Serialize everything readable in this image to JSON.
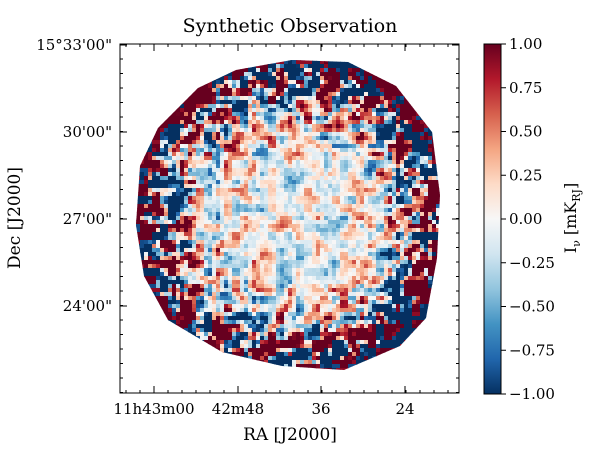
{
  "chart_data": {
    "type": "heatmap",
    "title": "Synthetic Observation",
    "xlabel": "RA [J2000]",
    "ylabel": "Dec [J2000]",
    "x_ticks": [
      "11h43m00",
      "42m48",
      "36",
      "24"
    ],
    "y_ticks": [
      "15°33'00\"",
      "30'00\"",
      "27'00\"",
      "24'00\""
    ],
    "colorbar": {
      "label_main": "I",
      "label_sub": "ν",
      "label_unit": " [mK",
      "label_unit_sub": "RJ",
      "label_close": "]",
      "vmin": -1.0,
      "vmax": 1.0,
      "ticks": [
        "1.00",
        "0.75",
        "0.50",
        "0.25",
        "0.00",
        "−0.25",
        "−0.50",
        "−0.75",
        "−1.00"
      ],
      "tick_values": [
        1.0,
        0.75,
        0.5,
        0.25,
        0.0,
        -0.25,
        -0.5,
        -0.75,
        -1.0
      ]
    },
    "colormap": "RdBu_r",
    "colors": [
      "#053061",
      "#2166ac",
      "#4393c3",
      "#92c5de",
      "#d1e5f0",
      "#f7f7f7",
      "#fddbc7",
      "#f4a582",
      "#d6604d",
      "#b2182b",
      "#67001f"
    ],
    "grid": false
  }
}
